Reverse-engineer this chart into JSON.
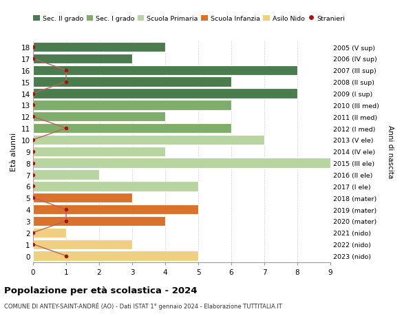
{
  "ages": [
    18,
    17,
    16,
    15,
    14,
    13,
    12,
    11,
    10,
    9,
    8,
    7,
    6,
    5,
    4,
    3,
    2,
    1,
    0
  ],
  "right_labels": [
    "2005 (V sup)",
    "2006 (IV sup)",
    "2007 (III sup)",
    "2008 (II sup)",
    "2009 (I sup)",
    "2010 (III med)",
    "2011 (II med)",
    "2012 (I med)",
    "2013 (V ele)",
    "2014 (IV ele)",
    "2015 (III ele)",
    "2016 (II ele)",
    "2017 (I ele)",
    "2018 (mater)",
    "2019 (mater)",
    "2020 (mater)",
    "2021 (nido)",
    "2022 (nido)",
    "2023 (nido)"
  ],
  "bar_values": [
    4,
    3,
    8,
    6,
    8,
    6,
    4,
    6,
    7,
    4,
    9,
    2,
    5,
    3,
    5,
    4,
    1,
    3,
    5
  ],
  "bar_colors": [
    "#4a7c4e",
    "#4a7c4e",
    "#4a7c4e",
    "#4a7c4e",
    "#4a7c4e",
    "#7fad6a",
    "#7fad6a",
    "#7fad6a",
    "#b8d4a0",
    "#b8d4a0",
    "#b8d4a0",
    "#b8d4a0",
    "#b8d4a0",
    "#d9722a",
    "#d9722a",
    "#d9722a",
    "#f0d080",
    "#f0d080",
    "#f0d080"
  ],
  "stranieri_x": [
    0,
    0,
    1,
    1,
    0,
    0,
    0,
    1,
    0,
    0,
    0,
    0,
    0,
    0,
    1,
    1,
    0,
    0,
    1
  ],
  "legend_labels": [
    "Sec. II grado",
    "Sec. I grado",
    "Scuola Primaria",
    "Scuola Infanzia",
    "Asilo Nido",
    "Stranieri"
  ],
  "legend_colors": [
    "#4a7c4e",
    "#7fad6a",
    "#b8d4a0",
    "#d9722a",
    "#f0d080",
    "#b22222"
  ],
  "ylabel": "Età alunni",
  "right_ylabel": "Anni di nascita",
  "title": "Popolazione per età scolastica - 2024",
  "subtitle": "COMUNE DI ANTEY-SAINT-ANDRÉ (AO) - Dati ISTAT 1° gennaio 2024 - Elaborazione TUTTITALIA.IT",
  "xlim": [
    0,
    9
  ],
  "bar_height": 0.85,
  "stranieri_color": "#aa1111",
  "stranieri_line_color": "#c06060",
  "grid_color": "#cccccc"
}
